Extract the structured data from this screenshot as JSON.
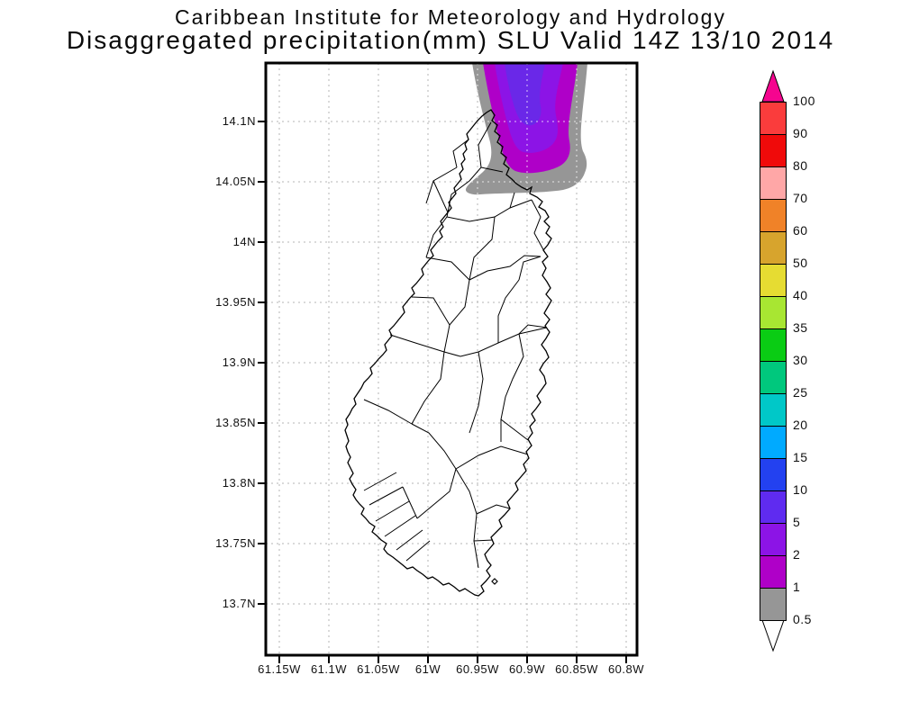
{
  "title": {
    "line1": "Caribbean Institute for Meteorology and Hydrology",
    "line2": "Disaggregated precipitation(mm) SLU Valid 14Z 13/10 2014"
  },
  "axes": {
    "lat_labels": [
      "14.1N",
      "14.05N",
      "14N",
      "13.95N",
      "13.9N",
      "13.85N",
      "13.8N",
      "13.75N",
      "13.7N"
    ],
    "lon_labels": [
      "61.15W",
      "61.1W",
      "61.05W",
      "61W",
      "60.95W",
      "60.9W",
      "60.85W",
      "60.8W"
    ]
  },
  "colorbar": {
    "boundary_labels": [
      "100",
      "90",
      "80",
      "70",
      "60",
      "50",
      "40",
      "35",
      "30",
      "25",
      "20",
      "15",
      "10",
      "5",
      "2",
      "1",
      "0.5"
    ],
    "segment_colors": [
      "#FA3C3C",
      "#F00A0A",
      "#FFA7A7",
      "#F08228",
      "#D7A42D",
      "#E6DC32",
      "#A8E632",
      "#0ACC14",
      "#00C87D",
      "#00C8C8",
      "#00AAFF",
      "#2341F0",
      "#5F2BF0",
      "#8C14E6",
      "#AF00C8",
      "#969696"
    ],
    "arrow_top_color": "#F5058F",
    "arrow_bottom_color": "#FFFFFF"
  },
  "precip_shading": {
    "outer_gray": "#969696",
    "level_1mm": "#AF00C8",
    "level_2mm": "#8C14E6",
    "level_5mm": "#6A28E8"
  }
}
